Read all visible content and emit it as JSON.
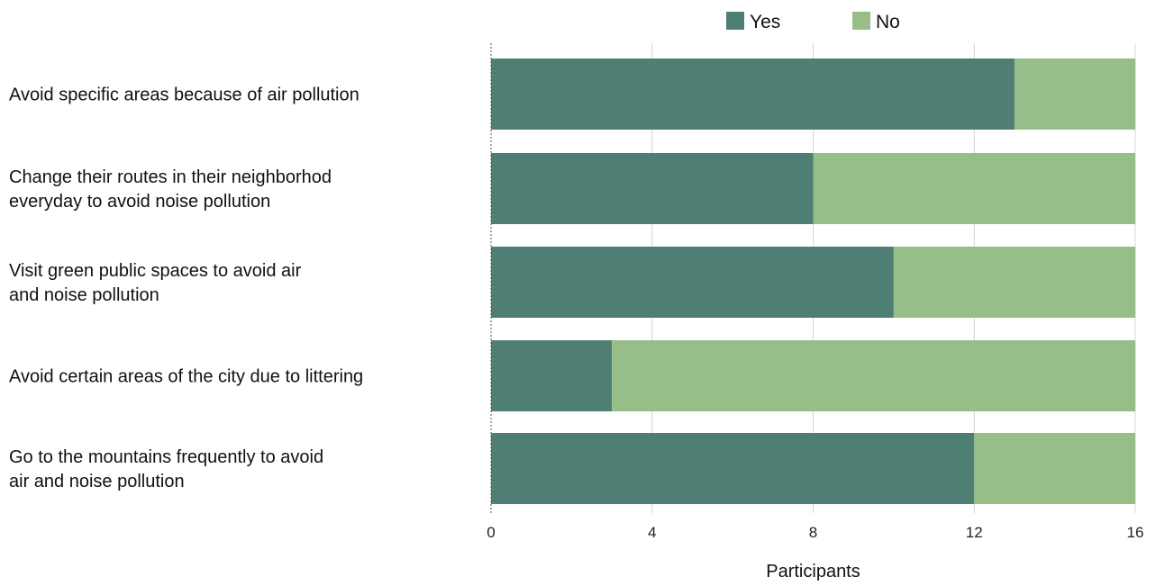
{
  "chart_data": {
    "type": "bar",
    "orientation": "horizontal",
    "stacked": true,
    "categories": [
      [
        "Avoid specific areas because of air pollution"
      ],
      [
        "Change their routes in their neighborhod",
        "everyday to avoid noise pollution"
      ],
      [
        "Visit green public spaces to avoid air",
        "and noise pollution"
      ],
      [
        "Avoid certain areas of the city due to littering"
      ],
      [
        "Go to the mountains frequently to avoid",
        "air and noise pollution"
      ]
    ],
    "series": [
      {
        "name": "Yes",
        "color": "#4e7e74",
        "values": [
          13,
          8,
          10,
          3,
          12
        ]
      },
      {
        "name": "No",
        "color": "#97bd88",
        "values": [
          3,
          8,
          6,
          13,
          4
        ]
      }
    ],
    "xlabel": "Participants",
    "xlim": [
      0,
      16
    ],
    "xticks": [
      0,
      4,
      8,
      12,
      16
    ],
    "grid": "vertical",
    "legend": "top-center"
  }
}
